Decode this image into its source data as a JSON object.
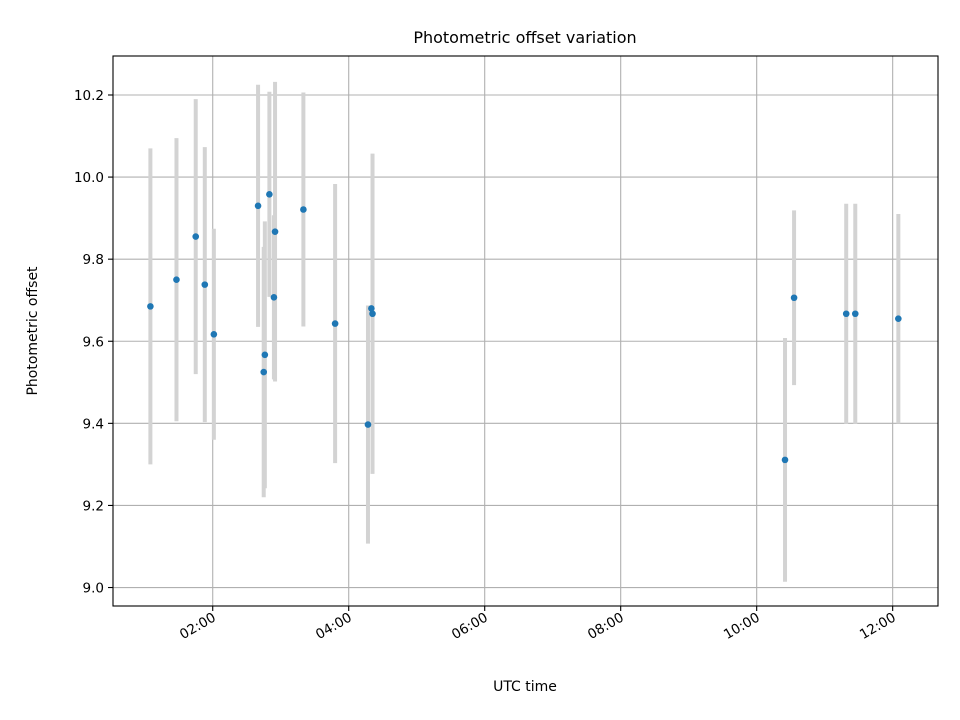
{
  "chart_data": {
    "type": "scatter",
    "title": "Photometric offset variation",
    "xlabel": "UTC time",
    "ylabel": "Photometric offset",
    "x_unit": "hours UTC",
    "xlim": [
      "00:32",
      "12:40"
    ],
    "ylim": [
      8.955,
      10.295
    ],
    "x_ticks": [
      "02:00",
      "04:00",
      "06:00",
      "08:00",
      "10:00",
      "12:00"
    ],
    "y_ticks": [
      9.0,
      9.2,
      9.4,
      9.6,
      9.8,
      10.0,
      10.2
    ],
    "y_tick_labels": [
      "9.0",
      "9.2",
      "9.4",
      "9.6",
      "9.8",
      "10.0",
      "10.2"
    ],
    "grid": true,
    "legend": "none",
    "colors": {
      "marker": "#1f77b4",
      "errorbar": "#d3d3d3",
      "grid": "#b0b0b0"
    },
    "points": [
      {
        "x": "01:05",
        "y": 9.685,
        "err": 0.385
      },
      {
        "x": "01:28",
        "y": 9.75,
        "err": 0.345
      },
      {
        "x": "01:45",
        "y": 9.855,
        "err": 0.335
      },
      {
        "x": "01:53",
        "y": 9.738,
        "err": 0.335
      },
      {
        "x": "02:01",
        "y": 9.617,
        "err": 0.257
      },
      {
        "x": "02:40",
        "y": 9.93,
        "err": 0.295
      },
      {
        "x": "02:45",
        "y": 9.525,
        "err": 0.305
      },
      {
        "x": "02:46",
        "y": 9.567,
        "err": 0.325
      },
      {
        "x": "02:50",
        "y": 9.958,
        "err": 0.25
      },
      {
        "x": "02:54",
        "y": 9.707,
        "err": 0.2
      },
      {
        "x": "02:55",
        "y": 9.867,
        "err": 0.365
      },
      {
        "x": "03:20",
        "y": 9.921,
        "err": 0.285
      },
      {
        "x": "03:48",
        "y": 9.643,
        "err": 0.34
      },
      {
        "x": "04:17",
        "y": 9.397,
        "err": 0.29
      },
      {
        "x": "04:20",
        "y": 9.68,
        "err": 0.005
      },
      {
        "x": "04:21",
        "y": 9.667,
        "err": 0.39
      },
      {
        "x": "10:25",
        "y": 9.311,
        "err": 0.297
      },
      {
        "x": "10:33",
        "y": 9.706,
        "err": 0.213
      },
      {
        "x": "11:19",
        "y": 9.667,
        "err": 0.268
      },
      {
        "x": "11:27",
        "y": 9.667,
        "err": 0.268
      },
      {
        "x": "12:05",
        "y": 9.655,
        "err": 0.255
      }
    ]
  }
}
